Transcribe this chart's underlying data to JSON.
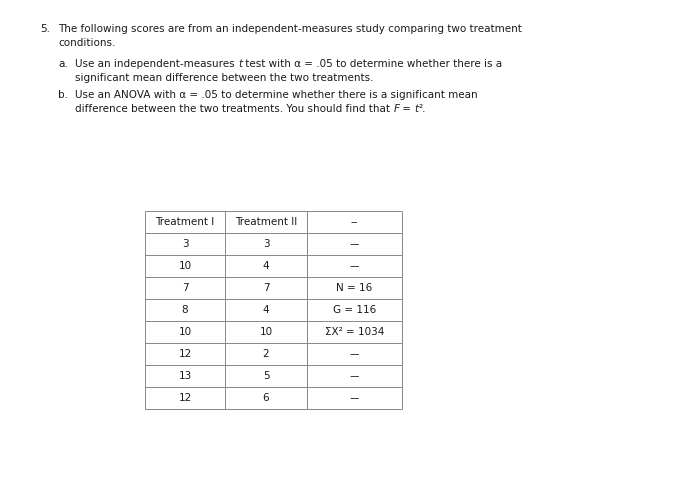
{
  "title_number": "5.",
  "title_text": "The following scores are from an independent-measures study comparing two treatment",
  "title_text2": "conditions.",
  "item_a_label": "a.",
  "item_a_line1": "Use an independent-measures t test with α = .05 to determine whether there is a",
  "item_a_line2": "significant mean difference between the two treatments.",
  "item_b_label": "b.",
  "item_b_line1": "Use an ANOVA with α = .05 to determine whether there is a significant mean",
  "item_b_line2": "difference between the two treatments. You should find that F = t².",
  "col_headers": [
    "Treatment I",
    "Treatment II",
    "--"
  ],
  "treatment1": [
    3,
    10,
    7,
    8,
    10,
    12,
    13,
    12
  ],
  "treatment2": [
    3,
    4,
    7,
    4,
    10,
    2,
    5,
    6
  ],
  "notes": [
    "--",
    "--",
    "N = 16",
    "G = 116",
    "ΣX² = 1034",
    "--",
    "--",
    "--"
  ],
  "background_color": "#ffffff",
  "text_color": "#1a1a1a",
  "border_color": "#888888",
  "fs_main": 7.5,
  "fs_table": 7.5
}
